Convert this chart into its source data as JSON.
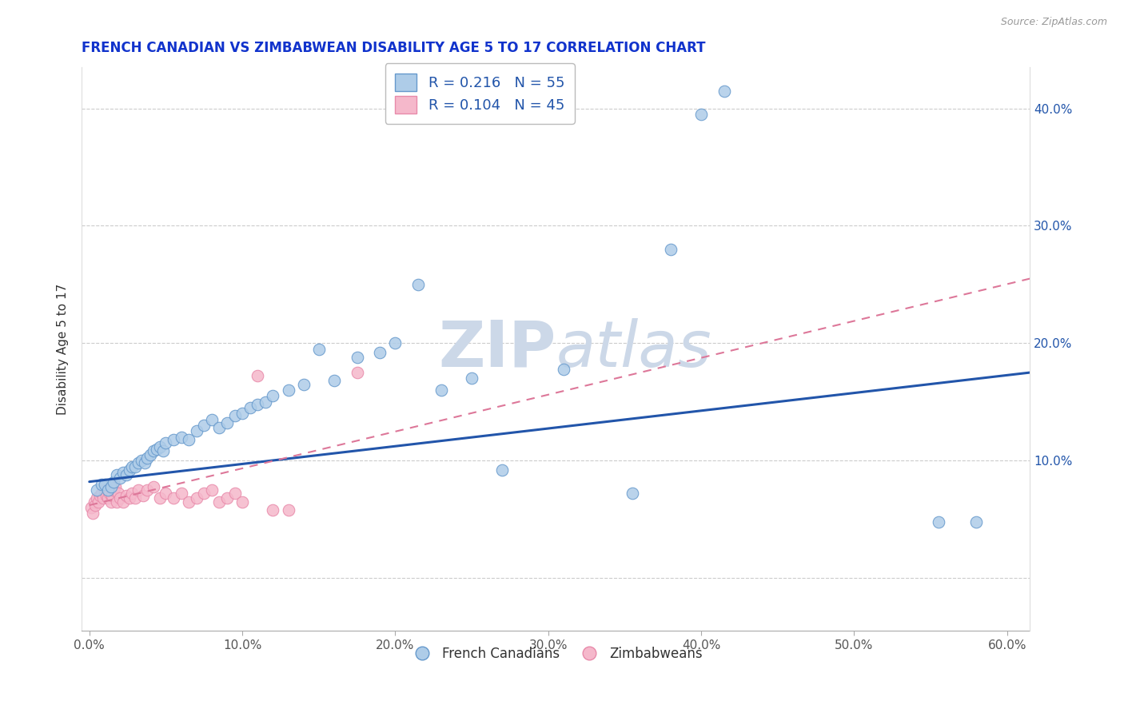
{
  "title": "FRENCH CANADIAN VS ZIMBABWEAN DISABILITY AGE 5 TO 17 CORRELATION CHART",
  "source": "Source: ZipAtlas.com",
  "ylabel": "Disability Age 5 to 17",
  "xlim": [
    -0.005,
    0.615
  ],
  "ylim": [
    -0.045,
    0.435
  ],
  "xticks": [
    0.0,
    0.1,
    0.2,
    0.3,
    0.4,
    0.5,
    0.6
  ],
  "yticks": [
    0.0,
    0.1,
    0.2,
    0.3,
    0.4
  ],
  "xtick_labels": [
    "0.0%",
    "10.0%",
    "20.0%",
    "30.0%",
    "40.0%",
    "50.0%",
    "60.0%"
  ],
  "ytick_labels_left": [
    "",
    "",
    "",
    "",
    ""
  ],
  "ytick_labels_right": [
    "",
    "10.0%",
    "20.0%",
    "30.0%",
    "40.0%"
  ],
  "blue_r": "0.216",
  "blue_n": "55",
  "pink_r": "0.104",
  "pink_n": "45",
  "legend_labels": [
    "French Canadians",
    "Zimbabweans"
  ],
  "blue_color": "#aecce8",
  "pink_color": "#f5b8cb",
  "blue_edge_color": "#6699cc",
  "pink_edge_color": "#e88aaa",
  "blue_line_color": "#2255aa",
  "pink_line_color": "#dd7799",
  "title_color": "#1133cc",
  "source_color": "#999999",
  "watermark_zip": "ZIP",
  "watermark_atlas": "atlas",
  "watermark_color": "#ccd8e8",
  "legend_r_color": "#2255aa",
  "background_color": "#ffffff",
  "grid_color": "#cccccc",
  "right_tick_color": "#2255aa",
  "blue_scatter_x": [
    0.005,
    0.008,
    0.01,
    0.012,
    0.014,
    0.016,
    0.018,
    0.02,
    0.022,
    0.024,
    0.026,
    0.028,
    0.03,
    0.032,
    0.034,
    0.036,
    0.038,
    0.04,
    0.042,
    0.044,
    0.046,
    0.048,
    0.05,
    0.055,
    0.06,
    0.065,
    0.07,
    0.075,
    0.08,
    0.085,
    0.09,
    0.095,
    0.1,
    0.105,
    0.11,
    0.115,
    0.12,
    0.13,
    0.14,
    0.15,
    0.16,
    0.175,
    0.19,
    0.2,
    0.215,
    0.23,
    0.25,
    0.27,
    0.31,
    0.355,
    0.38,
    0.4,
    0.415,
    0.555,
    0.58
  ],
  "blue_scatter_y": [
    0.075,
    0.08,
    0.08,
    0.075,
    0.078,
    0.082,
    0.088,
    0.085,
    0.09,
    0.088,
    0.092,
    0.095,
    0.095,
    0.098,
    0.1,
    0.098,
    0.102,
    0.105,
    0.108,
    0.11,
    0.112,
    0.108,
    0.115,
    0.118,
    0.12,
    0.118,
    0.125,
    0.13,
    0.135,
    0.128,
    0.132,
    0.138,
    0.14,
    0.145,
    0.148,
    0.15,
    0.155,
    0.16,
    0.165,
    0.195,
    0.168,
    0.188,
    0.192,
    0.2,
    0.25,
    0.16,
    0.17,
    0.092,
    0.178,
    0.072,
    0.28,
    0.395,
    0.415,
    0.048,
    0.048
  ],
  "pink_scatter_x": [
    0.001,
    0.002,
    0.003,
    0.004,
    0.005,
    0.006,
    0.007,
    0.008,
    0.009,
    0.01,
    0.011,
    0.012,
    0.013,
    0.014,
    0.015,
    0.016,
    0.017,
    0.018,
    0.019,
    0.02,
    0.022,
    0.024,
    0.026,
    0.028,
    0.03,
    0.032,
    0.035,
    0.038,
    0.042,
    0.046,
    0.05,
    0.055,
    0.06,
    0.065,
    0.07,
    0.075,
    0.08,
    0.085,
    0.09,
    0.095,
    0.1,
    0.11,
    0.12,
    0.13,
    0.175
  ],
  "pink_scatter_y": [
    0.06,
    0.055,
    0.065,
    0.062,
    0.068,
    0.065,
    0.07,
    0.072,
    0.068,
    0.075,
    0.07,
    0.068,
    0.072,
    0.065,
    0.07,
    0.075,
    0.078,
    0.065,
    0.072,
    0.068,
    0.065,
    0.07,
    0.068,
    0.072,
    0.068,
    0.075,
    0.07,
    0.075,
    0.078,
    0.068,
    0.072,
    0.068,
    0.072,
    0.065,
    0.068,
    0.072,
    0.075,
    0.065,
    0.068,
    0.072,
    0.065,
    0.172,
    0.058,
    0.058,
    0.175
  ],
  "blue_line_start_y": 0.082,
  "blue_line_end_y": 0.175,
  "pink_line_start_y": 0.062,
  "pink_line_end_y": 0.255
}
